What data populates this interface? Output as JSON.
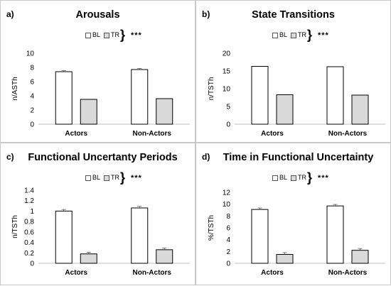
{
  "colors": {
    "BL": "#ffffff",
    "TR": "#d9d9d9",
    "stroke": "#000000",
    "axis": "#bfbfbf"
  },
  "legend": {
    "bl_label": "BL",
    "tr_label": "TR",
    "significance": "***"
  },
  "chart_data": [
    {
      "type": "bar",
      "panel_label": "a)",
      "title": "Arousals",
      "ylabel": "n/ASTh",
      "categories": [
        "Actors",
        "Non-Actors"
      ],
      "ylim": [
        0,
        10
      ],
      "yticks": [
        0,
        2,
        4,
        6,
        8,
        10
      ],
      "series": [
        {
          "name": "BL",
          "values": [
            7.4,
            7.7
          ],
          "errors": [
            0.15,
            0.15
          ]
        },
        {
          "name": "TR",
          "values": [
            3.5,
            3.6
          ],
          "errors": [
            0,
            0
          ]
        }
      ],
      "grid": false
    },
    {
      "type": "bar",
      "panel_label": "b)",
      "title": "State Transitions",
      "ylabel": "n/TSTh",
      "categories": [
        "Actors",
        "Non-Actors"
      ],
      "ylim": [
        0,
        20
      ],
      "yticks": [
        0,
        5,
        10,
        15,
        20
      ],
      "series": [
        {
          "name": "BL",
          "values": [
            16.3,
            16.2
          ],
          "errors": [
            0,
            0
          ]
        },
        {
          "name": "TR",
          "values": [
            8.3,
            8.2
          ],
          "errors": [
            0,
            0
          ]
        }
      ],
      "grid": false
    },
    {
      "type": "bar",
      "panel_label": "c)",
      "title": "Functional Uncertanty Periods",
      "ylabel": "n/TSTh",
      "categories": [
        "Actors",
        "Non-Actors"
      ],
      "ylim": [
        0,
        1.4
      ],
      "yticks": [
        0,
        0.2,
        0.4,
        0.6,
        0.8,
        1,
        1.2,
        1.4
      ],
      "series": [
        {
          "name": "BL",
          "values": [
            1.0,
            1.06
          ],
          "errors": [
            0.03,
            0.03
          ]
        },
        {
          "name": "TR",
          "values": [
            0.18,
            0.26
          ],
          "errors": [
            0.03,
            0.03
          ]
        }
      ],
      "grid": false
    },
    {
      "type": "bar",
      "panel_label": "d)",
      "title": "Time in Functional Uncertainty",
      "ylabel": "%/TSTh",
      "categories": [
        "Actors",
        "Non-Actors"
      ],
      "ylim": [
        0,
        12
      ],
      "yticks": [
        0,
        2,
        4,
        6,
        8,
        10,
        12
      ],
      "series": [
        {
          "name": "BL",
          "values": [
            9.1,
            9.7
          ],
          "errors": [
            0.25,
            0.25
          ]
        },
        {
          "name": "TR",
          "values": [
            1.5,
            2.2
          ],
          "errors": [
            0.3,
            0.3
          ]
        }
      ],
      "grid": false
    }
  ]
}
